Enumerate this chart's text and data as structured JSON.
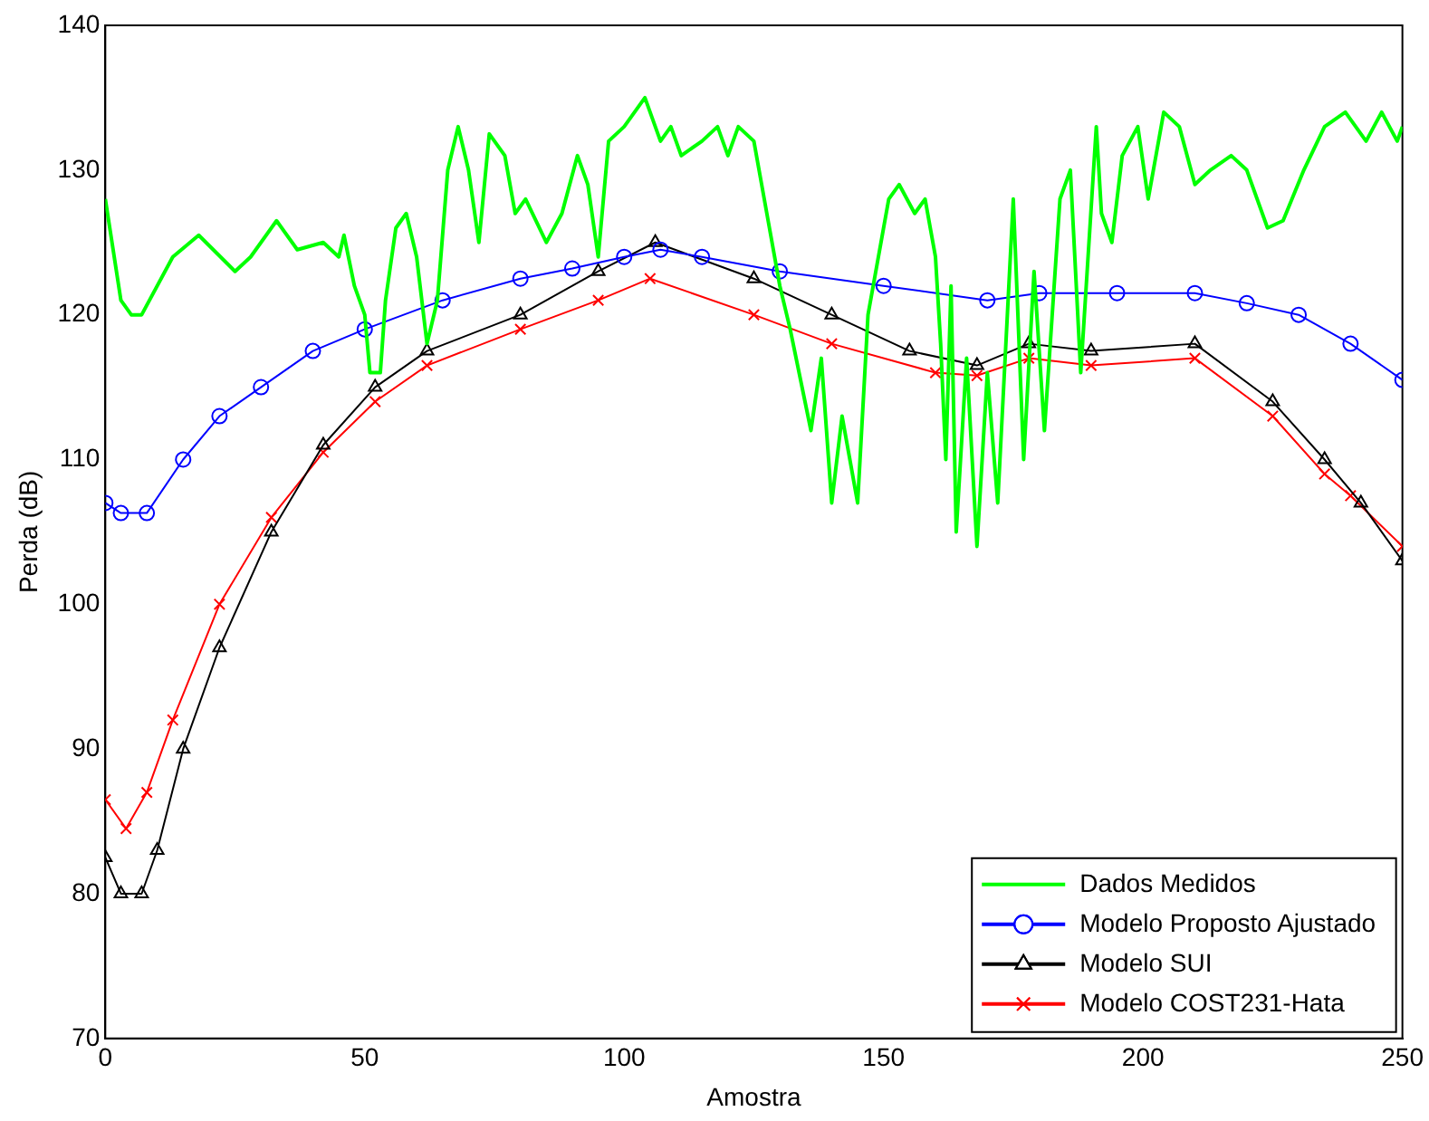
{
  "chart_data": {
    "type": "line",
    "xlabel": "Amostra",
    "ylabel": "Perda (dB)",
    "xlim": [
      0,
      250
    ],
    "xticks": [
      0,
      50,
      100,
      150,
      200,
      250
    ],
    "ylim": [
      70,
      140
    ],
    "yticks": [
      70,
      80,
      90,
      100,
      110,
      120,
      130,
      140
    ],
    "grid": false,
    "legend": "bottom right",
    "line_style": "solid",
    "series": [
      {
        "name": "Dados Medidos",
        "color": "#00ff00",
        "marker": "none",
        "x": [
          0,
          3,
          5,
          7,
          13,
          18,
          25,
          28,
          33,
          37,
          42,
          45,
          46,
          48,
          50,
          51,
          53,
          54,
          56,
          58,
          60,
          62,
          64,
          66,
          68,
          70,
          72,
          74,
          77,
          79,
          81,
          85,
          88,
          91,
          93,
          95,
          97,
          100,
          104,
          107,
          109,
          111,
          115,
          118,
          120,
          122,
          125,
          128,
          130,
          132,
          136,
          138,
          140,
          142,
          145,
          147,
          151,
          153,
          156,
          158,
          160,
          161,
          162,
          163,
          164,
          166,
          168,
          170,
          172,
          174,
          175,
          177,
          179,
          181,
          184,
          186,
          188,
          191,
          192,
          194,
          196,
          199,
          201,
          204,
          207,
          210,
          213,
          217,
          220,
          224,
          227,
          231,
          235,
          239,
          243,
          246,
          249,
          250
        ],
        "values": [
          128,
          121,
          120,
          120,
          124,
          125.5,
          123,
          124,
          126.5,
          124.5,
          125,
          124,
          125.5,
          122,
          120,
          116,
          116,
          121,
          126,
          127,
          124,
          118,
          121,
          130,
          133,
          130,
          125,
          132.5,
          131,
          127,
          128,
          125,
          127,
          131,
          129,
          124,
          132,
          133,
          135,
          132,
          133,
          131,
          132,
          133,
          131,
          133,
          132,
          126,
          122,
          119,
          112,
          117,
          107,
          113,
          107,
          120,
          128,
          129,
          127,
          128,
          124,
          118,
          110,
          122,
          105,
          117,
          104,
          116,
          107,
          121,
          128,
          110,
          123,
          112,
          128,
          130,
          116,
          133,
          127,
          125,
          131,
          133,
          128,
          134,
          133,
          129,
          130,
          131,
          130,
          126,
          126.5,
          130,
          133,
          134,
          132,
          134,
          132,
          133
        ]
      },
      {
        "name": "Modelo Proposto Ajustado",
        "color": "#0000ff",
        "marker": "circle",
        "x": [
          0,
          3,
          8,
          15,
          22,
          30,
          40,
          50,
          65,
          80,
          90,
          100,
          107,
          115,
          130,
          150,
          170,
          180,
          195,
          210,
          220,
          230,
          240,
          250
        ],
        "values": [
          107,
          106.3,
          106.3,
          110,
          113,
          115,
          117.5,
          119,
          121,
          122.5,
          123.2,
          124,
          124.5,
          124,
          123,
          122,
          121,
          121.5,
          121.5,
          121.5,
          120.8,
          120,
          118,
          115.5
        ]
      },
      {
        "name": "Modelo SUI",
        "color": "#000000",
        "marker": "triangle",
        "x": [
          0,
          3,
          7,
          10,
          15,
          22,
          32,
          42,
          52,
          62,
          80,
          95,
          106,
          125,
          140,
          155,
          168,
          178,
          190,
          210,
          225,
          235,
          242,
          250
        ],
        "values": [
          82.5,
          80,
          80,
          83,
          90,
          97,
          105,
          111,
          115,
          117.5,
          120,
          123,
          125,
          122.5,
          120,
          117.5,
          116.5,
          118,
          117.5,
          118,
          114,
          110,
          107,
          103
        ]
      },
      {
        "name": "Modelo COST231-Hata",
        "color": "#ff0000",
        "marker": "cross",
        "x": [
          0,
          4,
          8,
          13,
          22,
          32,
          42,
          52,
          62,
          80,
          95,
          105,
          125,
          140,
          160,
          168,
          178,
          190,
          210,
          225,
          235,
          240,
          250
        ],
        "values": [
          86.5,
          84.5,
          87,
          92,
          100,
          106,
          110.5,
          114,
          116.5,
          119,
          121,
          122.5,
          120,
          118,
          116,
          115.8,
          117,
          116.5,
          117,
          113,
          109,
          107.5,
          104
        ]
      }
    ]
  }
}
